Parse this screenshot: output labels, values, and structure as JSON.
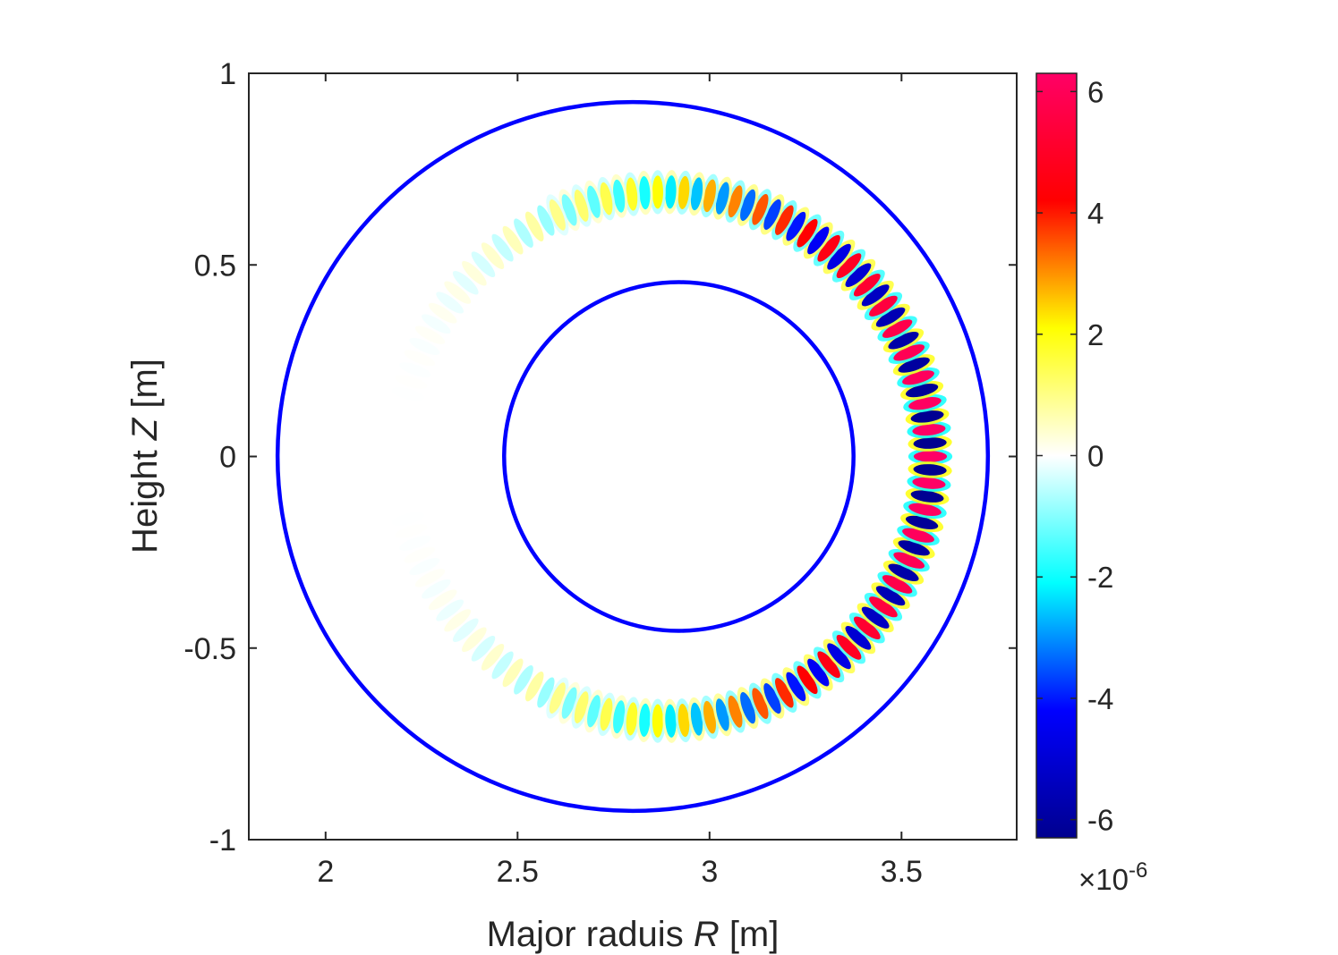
{
  "chart_data": {
    "type": "heatmap",
    "title": "",
    "xlabel": {
      "prefix": "Major raduis ",
      "symbol": "R",
      "unit": " [m]"
    },
    "ylabel": {
      "prefix": "Height ",
      "symbol": "Z",
      "unit": " [m]"
    },
    "xlim": [
      1.8,
      3.8
    ],
    "ylim": [
      -1,
      1
    ],
    "x_ticks": [
      2,
      2.5,
      3,
      3.5
    ],
    "x_tick_labels": [
      "2",
      "2.5",
      "3",
      "3.5"
    ],
    "y_ticks": [
      1,
      0.5,
      0,
      -0.5,
      -1
    ],
    "y_tick_labels": [
      "1",
      "0.5",
      "0",
      "-0.5",
      "-1"
    ],
    "boundaries": [
      {
        "name": "outer",
        "center_R": 2.8,
        "center_Z": 0.0,
        "radius": 0.925,
        "color": "#0000ff"
      },
      {
        "name": "inner",
        "center_R": 2.92,
        "center_Z": 0.0,
        "radius": 0.455,
        "color": "#0000ff"
      }
    ],
    "mode_structure": {
      "center_R": 2.865,
      "center_Z": 0.0,
      "radius": 0.69,
      "radial_width": 0.07,
      "poloidal_wavenumber": 64,
      "max_amplitude_at_angle_deg": 0,
      "amplitude_range": [
        -6.3e-06,
        6.3e-06
      ]
    },
    "colorbar": {
      "range": [
        -6.3e-06,
        6.3e-06
      ],
      "ticks": [
        6,
        4,
        2,
        0,
        -2,
        -4,
        -6
      ],
      "tick_labels": [
        "6",
        "4",
        "2",
        "0",
        "-2",
        "-4",
        "-6"
      ],
      "multiplier_prefix": "×10",
      "multiplier_exponent": "-6",
      "colormap": [
        "#00008f",
        "#0000ff",
        "#00ffff",
        "#ffffff",
        "#ffff00",
        "#ff0000",
        "#ff0066"
      ]
    }
  }
}
